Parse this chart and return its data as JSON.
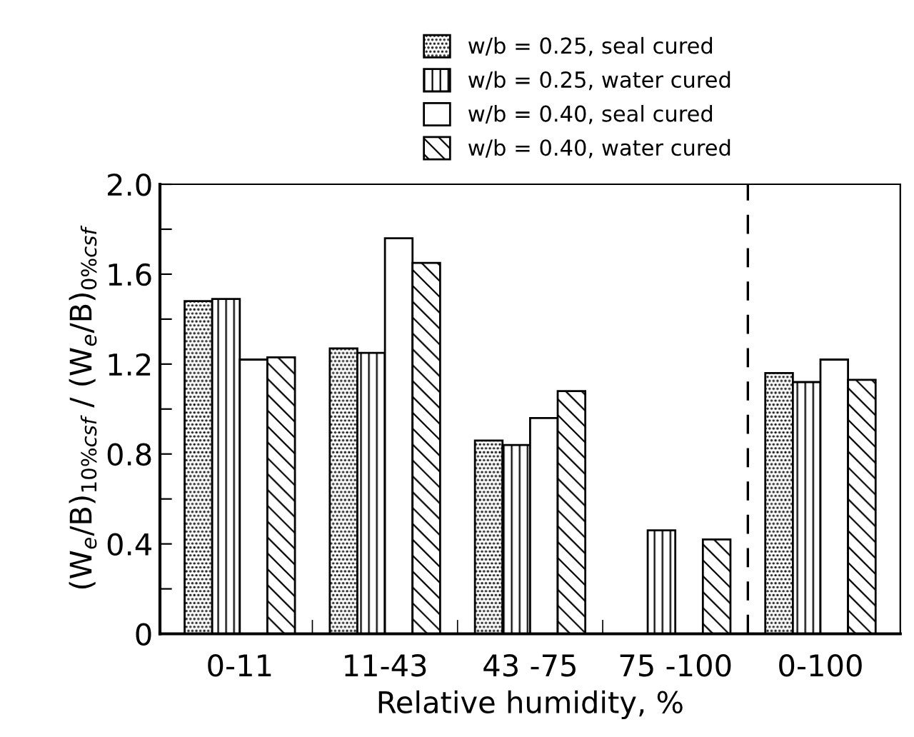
{
  "chart_data": {
    "type": "bar",
    "xlabel": "Relative humidity, %",
    "ylabel": "(W$_{e}$/B)$_{10%csf}$ / (W$_{e}$/B)$_{0%csf}$",
    "categories": [
      "0-11",
      "11-43",
      "43 -75",
      "75 -100",
      "0-100"
    ],
    "series": [
      {
        "name": "w/b = 0.25, seal cured",
        "color": "#000000",
        "values": [
          1.48,
          1.27,
          0.86,
          null,
          1.16
        ]
      },
      {
        "name": "w/b = 0.25, water cured",
        "color": "#000000",
        "values": [
          1.49,
          1.25,
          0.84,
          0.46,
          1.12
        ]
      },
      {
        "name": "w/b = 0.40, seal cured",
        "color": "#ffffff",
        "values": [
          1.22,
          1.76,
          0.96,
          null,
          1.22
        ]
      },
      {
        "name": "w/b = 0.40, water cured",
        "color": "#000000",
        "values": [
          1.23,
          1.65,
          1.08,
          0.42,
          1.13
        ]
      }
    ],
    "ylim": [
      0,
      2.0
    ],
    "yticks": [
      0,
      {
        "value": 0.2,
        "label": null
      },
      0.4,
      {
        "value": 0.6,
        "label": null
      },
      0.8,
      {
        "value": 1.0,
        "label": null
      },
      1.2,
      {
        "value": 1.4,
        "label": null
      },
      1.6,
      {
        "value": 1.8,
        "label": null
      },
      {
        "value": 2.0,
        "label": "2.0"
      }
    ],
    "grid": false,
    "legend": "top right"
  }
}
